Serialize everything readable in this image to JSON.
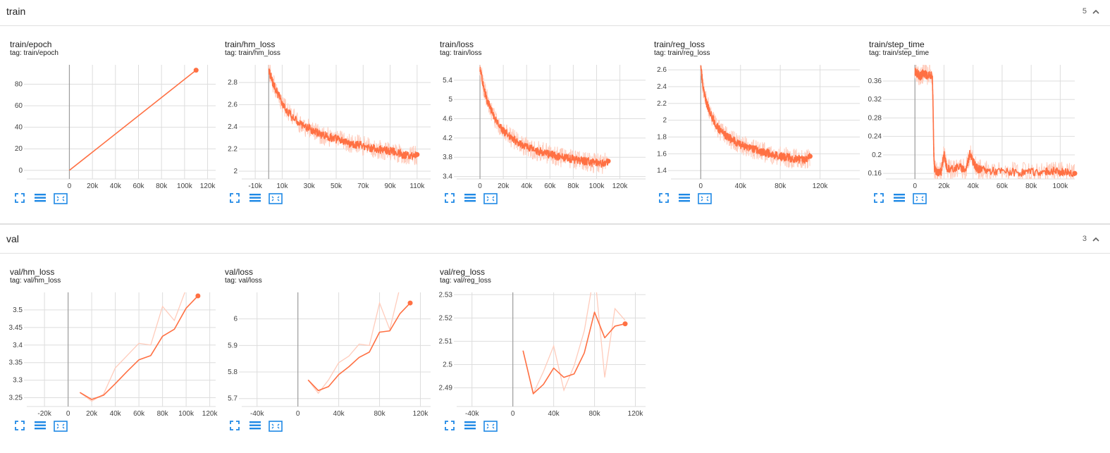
{
  "colors": {
    "series": "#ff7043",
    "series_light": "#ffccbc",
    "grid": "#dddddd",
    "axis_zero": "#9e9e9e",
    "tool_icon": "#1e88e5"
  },
  "sections": [
    {
      "title": "train",
      "count": "5",
      "cards": [
        {
          "title": "train/epoch",
          "tag": "tag: train/epoch",
          "chart_data": {
            "type": "line",
            "xlim": [
              -37000,
              127000
            ],
            "ylim": [
              -8,
              98
            ],
            "xticks": [
              0,
              20000,
              40000,
              60000,
              80000,
              100000,
              120000
            ],
            "xtick_labels": [
              "0",
              "20k",
              "40k",
              "60k",
              "80k",
              "100k",
              "120k"
            ],
            "yticks": [
              0,
              20,
              40,
              60,
              80
            ],
            "ytick_labels": [
              "0",
              "20",
              "40",
              "60",
              "80"
            ],
            "grid": true,
            "series": [
              {
                "smoothed": {
                  "x": [
                    0,
                    110000
                  ],
                  "y": [
                    0,
                    93
                  ]
                }
              }
            ]
          }
        },
        {
          "title": "train/hm_loss",
          "tag": "tag: train/hm_loss",
          "chart_data": {
            "type": "line",
            "xlim": [
              -20000,
              120000
            ],
            "ylim": [
              1.93,
              2.96
            ],
            "xticks": [
              -10000,
              10000,
              30000,
              50000,
              70000,
              90000,
              110000
            ],
            "xtick_labels": [
              "-10k",
              "10k",
              "30k",
              "50k",
              "70k",
              "90k",
              "110k"
            ],
            "yticks": [
              2.0,
              2.2,
              2.4,
              2.6,
              2.8
            ],
            "ytick_labels": [
              "2",
              "2.2",
              "2.4",
              "2.6",
              "2.8"
            ],
            "grid": true,
            "series": [
              {
                "smoothed": {
                  "x": [
                    0,
                    3000,
                    6000,
                    10000,
                    15000,
                    20000,
                    25000,
                    30000,
                    35000,
                    40000,
                    45000,
                    50000,
                    55000,
                    60000,
                    65000,
                    70000,
                    75000,
                    80000,
                    85000,
                    90000,
                    95000,
                    100000,
                    105000,
                    110000
                  ],
                  "y": [
                    2.92,
                    2.8,
                    2.72,
                    2.62,
                    2.52,
                    2.46,
                    2.41,
                    2.39,
                    2.35,
                    2.33,
                    2.31,
                    2.29,
                    2.27,
                    2.25,
                    2.24,
                    2.23,
                    2.21,
                    2.2,
                    2.19,
                    2.18,
                    2.17,
                    2.15,
                    2.14,
                    2.15
                  ]
                }
              }
            ]
          }
        },
        {
          "title": "train/loss",
          "tag": "tag: train/loss",
          "chart_data": {
            "type": "line",
            "xlim": [
              -20000,
              142000
            ],
            "ylim": [
              3.35,
              5.72
            ],
            "xticks": [
              0,
              20000,
              40000,
              60000,
              80000,
              100000,
              120000
            ],
            "xtick_labels": [
              "0",
              "20k",
              "40k",
              "60k",
              "80k",
              "100k",
              "120k"
            ],
            "yticks": [
              3.4,
              3.8,
              4.2,
              4.6,
              5.0,
              5.4
            ],
            "ytick_labels": [
              "3.4",
              "3.8",
              "4.2",
              "4.6",
              "5",
              "5.4"
            ],
            "grid": true,
            "series": [
              {
                "smoothed": {
                  "x": [
                    0,
                    3000,
                    6000,
                    10000,
                    15000,
                    20000,
                    25000,
                    30000,
                    35000,
                    40000,
                    45000,
                    50000,
                    55000,
                    60000,
                    65000,
                    70000,
                    75000,
                    80000,
                    85000,
                    90000,
                    95000,
                    100000,
                    105000,
                    110000
                  ],
                  "y": [
                    5.65,
                    5.25,
                    5.0,
                    4.75,
                    4.5,
                    4.35,
                    4.25,
                    4.15,
                    4.08,
                    4.02,
                    3.97,
                    3.93,
                    3.9,
                    3.86,
                    3.83,
                    3.8,
                    3.78,
                    3.76,
                    3.74,
                    3.72,
                    3.7,
                    3.68,
                    3.66,
                    3.72
                  ]
                }
              }
            ]
          }
        },
        {
          "title": "train/reg_loss",
          "tag": "tag: train/reg_loss",
          "chart_data": {
            "type": "line",
            "xlim": [
              -30000,
              160000
            ],
            "ylim": [
              1.3,
              2.66
            ],
            "xticks": [
              0,
              40000,
              80000,
              120000
            ],
            "xtick_labels": [
              "0",
              "40k",
              "80k",
              "120k"
            ],
            "yticks": [
              1.4,
              1.6,
              1.8,
              2.0,
              2.2,
              2.4,
              2.6
            ],
            "ytick_labels": [
              "1.4",
              "1.6",
              "1.8",
              "2",
              "2.2",
              "2.4",
              "2.6"
            ],
            "grid": true,
            "series": [
              {
                "smoothed": {
                  "x": [
                    0,
                    3000,
                    6000,
                    10000,
                    15000,
                    20000,
                    25000,
                    30000,
                    35000,
                    40000,
                    45000,
                    50000,
                    55000,
                    60000,
                    65000,
                    70000,
                    75000,
                    80000,
                    85000,
                    90000,
                    95000,
                    100000,
                    105000,
                    110000
                  ],
                  "y": [
                    2.62,
                    2.35,
                    2.2,
                    2.07,
                    1.95,
                    1.87,
                    1.82,
                    1.78,
                    1.74,
                    1.71,
                    1.69,
                    1.67,
                    1.65,
                    1.63,
                    1.61,
                    1.6,
                    1.58,
                    1.57,
                    1.56,
                    1.55,
                    1.54,
                    1.53,
                    1.52,
                    1.57
                  ]
                }
              }
            ]
          }
        },
        {
          "title": "train/step_time",
          "tag": "tag: train/step_time",
          "chart_data": {
            "type": "line",
            "xlim": [
              -20000,
              110000
            ],
            "ylim": [
              0.148,
              0.395
            ],
            "xticks": [
              0,
              20000,
              40000,
              60000,
              80000,
              100000
            ],
            "xtick_labels": [
              "0",
              "20k",
              "40k",
              "60k",
              "80k",
              "100k"
            ],
            "yticks": [
              0.16,
              0.2,
              0.24,
              0.28,
              0.32,
              0.36
            ],
            "ytick_labels": [
              "0.16",
              "0.2",
              "0.24",
              "0.28",
              "0.32",
              "0.36"
            ],
            "grid": true,
            "series": [
              {
                "smoothed": {
                  "x": [
                    0,
                    2000,
                    4000,
                    6000,
                    8000,
                    10000,
                    12000,
                    12500,
                    13000,
                    13500,
                    15000,
                    18000,
                    20000,
                    22000,
                    25000,
                    30000,
                    35000,
                    38000,
                    40000,
                    43000,
                    45000,
                    50000,
                    60000,
                    70000,
                    80000,
                    90000,
                    95000,
                    100000,
                    105000,
                    110000
                  ],
                  "y": [
                    0.38,
                    0.375,
                    0.37,
                    0.378,
                    0.372,
                    0.375,
                    0.37,
                    0.3,
                    0.2,
                    0.17,
                    0.163,
                    0.165,
                    0.2,
                    0.172,
                    0.168,
                    0.175,
                    0.168,
                    0.205,
                    0.185,
                    0.17,
                    0.168,
                    0.166,
                    0.164,
                    0.163,
                    0.162,
                    0.163,
                    0.165,
                    0.163,
                    0.164,
                    0.16
                  ]
                }
              }
            ]
          }
        }
      ]
    },
    {
      "title": "val",
      "count": "3",
      "cards": [
        {
          "title": "val/hm_loss",
          "tag": "tag: val/hm_loss",
          "chart_data": {
            "type": "line",
            "xlim": [
              -35000,
              125000
            ],
            "ylim": [
              3.225,
              3.55
            ],
            "xticks": [
              -20000,
              0,
              20000,
              40000,
              60000,
              80000,
              100000,
              120000
            ],
            "xtick_labels": [
              "-20k",
              "0",
              "20k",
              "40k",
              "60k",
              "80k",
              "100k",
              "120k"
            ],
            "yticks": [
              3.25,
              3.3,
              3.35,
              3.4,
              3.45,
              3.5
            ],
            "ytick_labels": [
              "3.25",
              "3.3",
              "3.35",
              "3.4",
              "3.45",
              "3.5"
            ],
            "grid": true,
            "series": [
              {
                "smoothed": {
                  "x": [
                    10000,
                    20000,
                    30000,
                    40000,
                    50000,
                    60000,
                    70000,
                    80000,
                    90000,
                    100000,
                    110000
                  ],
                  "y": [
                    3.265,
                    3.245,
                    3.257,
                    3.29,
                    3.325,
                    3.358,
                    3.37,
                    3.425,
                    3.445,
                    3.505,
                    3.54
                  ]
                },
                "raw": {
                  "x": [
                    10000,
                    20000,
                    30000,
                    40000,
                    50000,
                    60000,
                    70000,
                    80000,
                    90000,
                    100000,
                    110000
                  ],
                  "y": [
                    3.265,
                    3.24,
                    3.26,
                    3.335,
                    3.37,
                    3.405,
                    3.4,
                    3.51,
                    3.47,
                    3.56,
                    3.6
                  ]
                }
              }
            ]
          }
        },
        {
          "title": "val/loss",
          "tag": "tag: val/loss",
          "chart_data": {
            "type": "line",
            "xlim": [
              -55000,
              130000
            ],
            "ylim": [
              5.67,
              6.1
            ],
            "xticks": [
              -40000,
              0,
              40000,
              80000,
              120000
            ],
            "xtick_labels": [
              "-40k",
              "0",
              "40k",
              "80k",
              "120k"
            ],
            "yticks": [
              5.7,
              5.8,
              5.9,
              6.0
            ],
            "ytick_labels": [
              "5.7",
              "5.8",
              "5.9",
              "6"
            ],
            "grid": true,
            "series": [
              {
                "smoothed": {
                  "x": [
                    10000,
                    20000,
                    30000,
                    40000,
                    50000,
                    60000,
                    70000,
                    80000,
                    90000,
                    100000,
                    110000
                  ],
                  "y": [
                    5.77,
                    5.73,
                    5.745,
                    5.79,
                    5.82,
                    5.855,
                    5.875,
                    5.95,
                    5.955,
                    6.02,
                    6.06
                  ]
                },
                "raw": {
                  "x": [
                    10000,
                    20000,
                    30000,
                    40000,
                    50000,
                    60000,
                    70000,
                    80000,
                    90000,
                    100000,
                    110000
                  ],
                  "y": [
                    5.77,
                    5.72,
                    5.77,
                    5.835,
                    5.86,
                    5.905,
                    5.9,
                    6.06,
                    5.96,
                    6.12,
                    6.13
                  ]
                }
              }
            ]
          }
        },
        {
          "title": "val/reg_loss",
          "tag": "tag: val/reg_loss",
          "chart_data": {
            "type": "line",
            "xlim": [
              -55000,
              130000
            ],
            "ylim": [
              2.482,
              2.531
            ],
            "xticks": [
              -40000,
              0,
              40000,
              80000,
              120000
            ],
            "xtick_labels": [
              "-40k",
              "0",
              "40k",
              "80k",
              "120k"
            ],
            "yticks": [
              2.49,
              2.5,
              2.51,
              2.52,
              2.53
            ],
            "ytick_labels": [
              "2.49",
              "2.5",
              "2.51",
              "2.52",
              "2.53"
            ],
            "grid": true,
            "series": [
              {
                "smoothed": {
                  "x": [
                    10000,
                    20000,
                    30000,
                    40000,
                    50000,
                    60000,
                    70000,
                    80000,
                    90000,
                    100000,
                    110000
                  ],
                  "y": [
                    2.506,
                    2.4875,
                    2.4915,
                    2.4985,
                    2.4945,
                    2.496,
                    2.505,
                    2.5225,
                    2.5115,
                    2.5165,
                    2.5175
                  ]
                },
                "raw": {
                  "x": [
                    10000,
                    20000,
                    30000,
                    40000,
                    50000,
                    60000,
                    70000,
                    80000,
                    90000,
                    100000,
                    110000
                  ],
                  "y": [
                    2.506,
                    2.4875,
                    2.497,
                    2.508,
                    2.489,
                    2.4995,
                    2.5145,
                    2.54,
                    2.4945,
                    2.524,
                    2.519
                  ]
                }
              }
            ]
          }
        }
      ]
    }
  ]
}
